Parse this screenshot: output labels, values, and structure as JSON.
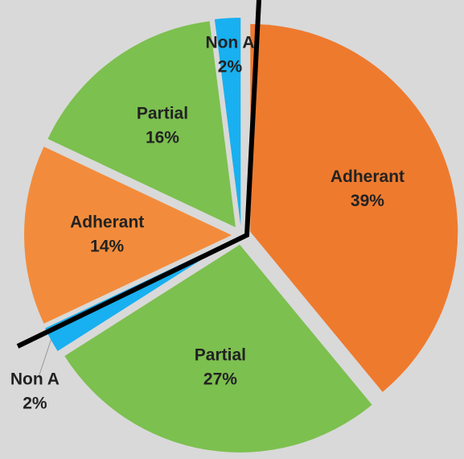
{
  "chart_data": {
    "type": "pie",
    "categories": [
      "Adherant",
      "Partial",
      "Non A",
      "Adherant",
      "Partial",
      "Non A"
    ],
    "values": [
      39,
      27,
      2,
      14,
      16,
      2
    ],
    "value_labels": [
      "39%",
      "27%",
      "2%",
      "14%",
      "16%",
      "2%"
    ],
    "colors": [
      "#ee7a2e",
      "#7cc04f",
      "#18b0f0",
      "#f28c3c",
      "#7cc04f",
      "#18b0f0"
    ]
  }
}
